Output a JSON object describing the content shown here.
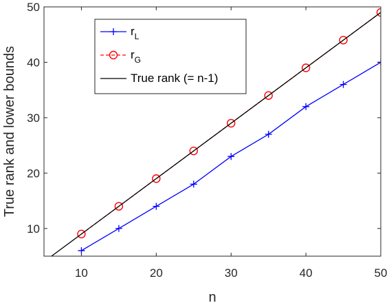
{
  "chart_data": {
    "type": "line",
    "xlabel": "n",
    "ylabel": "True rank and lower bounds",
    "xlim": [
      5,
      50
    ],
    "ylim": [
      5,
      50
    ],
    "xticks": [
      10,
      20,
      30,
      40,
      50
    ],
    "yticks": [
      10,
      20,
      30,
      40,
      50
    ],
    "grid": false,
    "legend_position": "top-left",
    "series": [
      {
        "name": "r",
        "name_subscript": "L",
        "color": "#0000ff",
        "line_style": "solid",
        "marker": "plus",
        "x": [
          10,
          15,
          20,
          25,
          30,
          35,
          40,
          45,
          50
        ],
        "y": [
          6,
          10,
          14,
          18,
          23,
          27,
          32,
          36,
          40
        ]
      },
      {
        "name": "r",
        "name_subscript": "G",
        "color": "#ff0000",
        "line_style": "dashed",
        "marker": "circle",
        "x": [
          10,
          15,
          20,
          25,
          30,
          35,
          40,
          45,
          50
        ],
        "y": [
          9,
          14,
          19,
          24,
          29,
          34,
          39,
          44,
          49
        ]
      },
      {
        "name": "True rank (= n-1)",
        "name_subscript": "",
        "color": "#000000",
        "line_style": "solid",
        "marker": "none",
        "x": [
          5,
          50
        ],
        "y": [
          4,
          49
        ]
      }
    ]
  }
}
